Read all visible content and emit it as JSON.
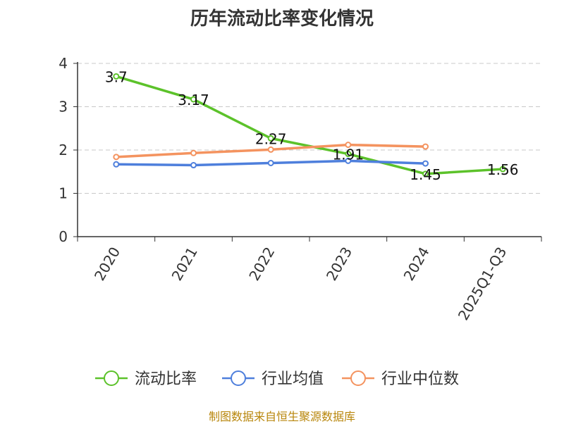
{
  "source_note": "制图数据来自恒生聚源数据库",
  "chart_data": {
    "type": "line",
    "title": "历年流动比率变化情况",
    "xlabel": "",
    "ylabel": "",
    "categories": [
      "2020",
      "2021",
      "2022",
      "2023",
      "2024",
      "2025Q1-Q3"
    ],
    "ylim": [
      0,
      4
    ],
    "yticks": [
      "0",
      "1",
      "2",
      "3",
      "4"
    ],
    "grid": true,
    "legend_position": "bottom",
    "series": [
      {
        "name": "流动比率",
        "color": "#5cc22a",
        "values": [
          3.7,
          3.17,
          2.27,
          1.91,
          1.45,
          1.56
        ],
        "labels": [
          "3.7",
          "3.17",
          "2.27",
          "1.91",
          "1.45",
          "1.56"
        ]
      },
      {
        "name": "行业均值",
        "color": "#4e7fdc",
        "values": [
          1.67,
          1.65,
          1.7,
          1.75,
          1.69,
          null
        ],
        "labels": []
      },
      {
        "name": "行业中位数",
        "color": "#f4935f",
        "values": [
          1.84,
          1.93,
          2.01,
          2.12,
          2.08,
          null
        ],
        "labels": []
      }
    ]
  }
}
